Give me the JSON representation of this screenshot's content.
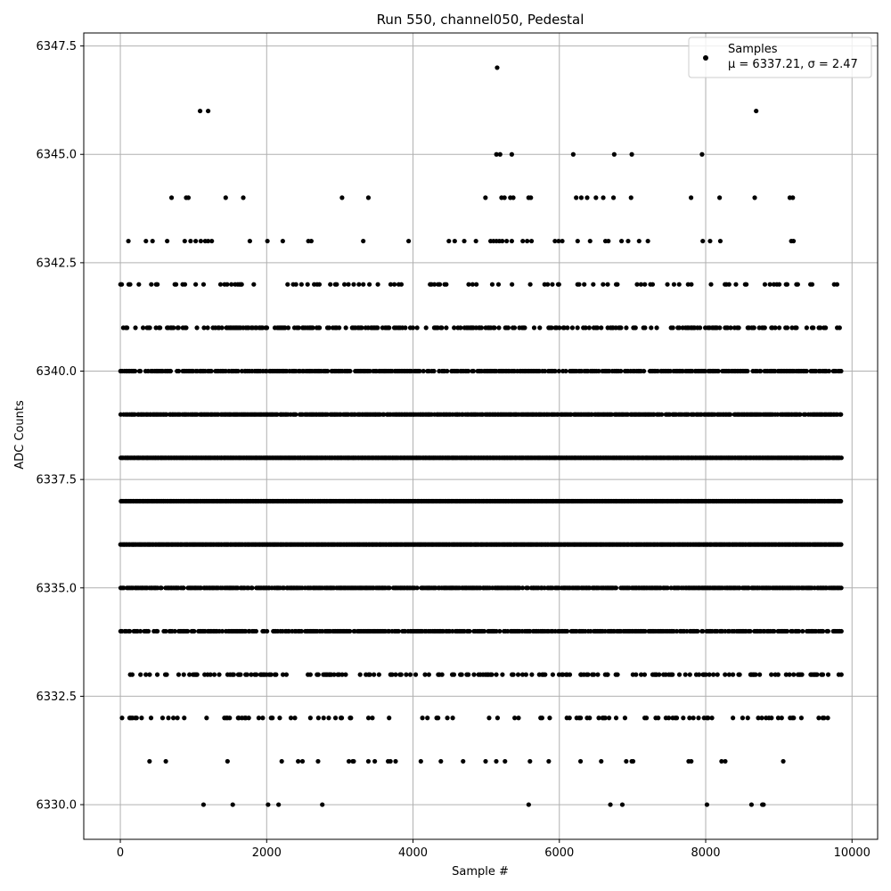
{
  "chart_data": {
    "type": "scatter",
    "title": "Run 550, channel050, Pedestal",
    "xlabel": "Sample #",
    "ylabel": "ADC Counts",
    "xlim": [
      -500,
      10350
    ],
    "ylim": [
      6329.2,
      6347.8
    ],
    "x_ticks": [
      0,
      2000,
      4000,
      6000,
      8000,
      10000
    ],
    "y_ticks": [
      6330.0,
      6332.5,
      6335.0,
      6337.5,
      6340.0,
      6342.5,
      6345.0,
      6347.5
    ],
    "x_tick_labels": [
      "0",
      "2000",
      "4000",
      "6000",
      "8000",
      "10000"
    ],
    "y_tick_labels": [
      "6330.0",
      "6332.5",
      "6335.0",
      "6337.5",
      "6340.0",
      "6342.5",
      "6345.0",
      "6347.5"
    ],
    "grid": true,
    "legend_position": "top-right",
    "series": [
      {
        "name": "Samples",
        "color": "#000000",
        "levels": [
          {
            "y": 6347,
            "x": [
              5150
            ]
          },
          {
            "y": 6346,
            "x": [
              1090,
              1200,
              8690
            ]
          },
          {
            "y": 6345,
            "x": [
              5140,
              5190,
              5350,
              6190,
              6750,
              6990,
              7950
            ]
          },
          {
            "y": 6344,
            "x": [
              700,
              900,
              930,
              1440,
              1680,
              3030,
              3390,
              4990,
              5210,
              5250,
              5330,
              5370,
              5580,
              5610,
              6230,
              6300,
              6380,
              6500,
              6600,
              6740,
              6980,
              7800,
              8190,
              8670,
              9150,
              9190
            ]
          },
          {
            "y": 6343,
            "x": [
              110,
              350,
              440,
              640,
              880,
              960,
              1030,
              1100,
              1160,
              1200,
              1250,
              1770,
              2010,
              2220,
              2570,
              2610,
              3320,
              3940,
              4490,
              4570,
              4700,
              4860,
              5060,
              5100,
              5140,
              5180,
              5220,
              5280,
              5350,
              5500,
              5560,
              5620,
              5940,
              5990,
              6040,
              6250,
              6420,
              6630,
              6670,
              6850,
              6940,
              7090,
              7210,
              7960,
              8060,
              8200,
              9170,
              9200
            ]
          }
        ]
      }
    ],
    "legend_label": "Samples",
    "legend_stat": "μ = 6337.21, σ = 2.47"
  }
}
